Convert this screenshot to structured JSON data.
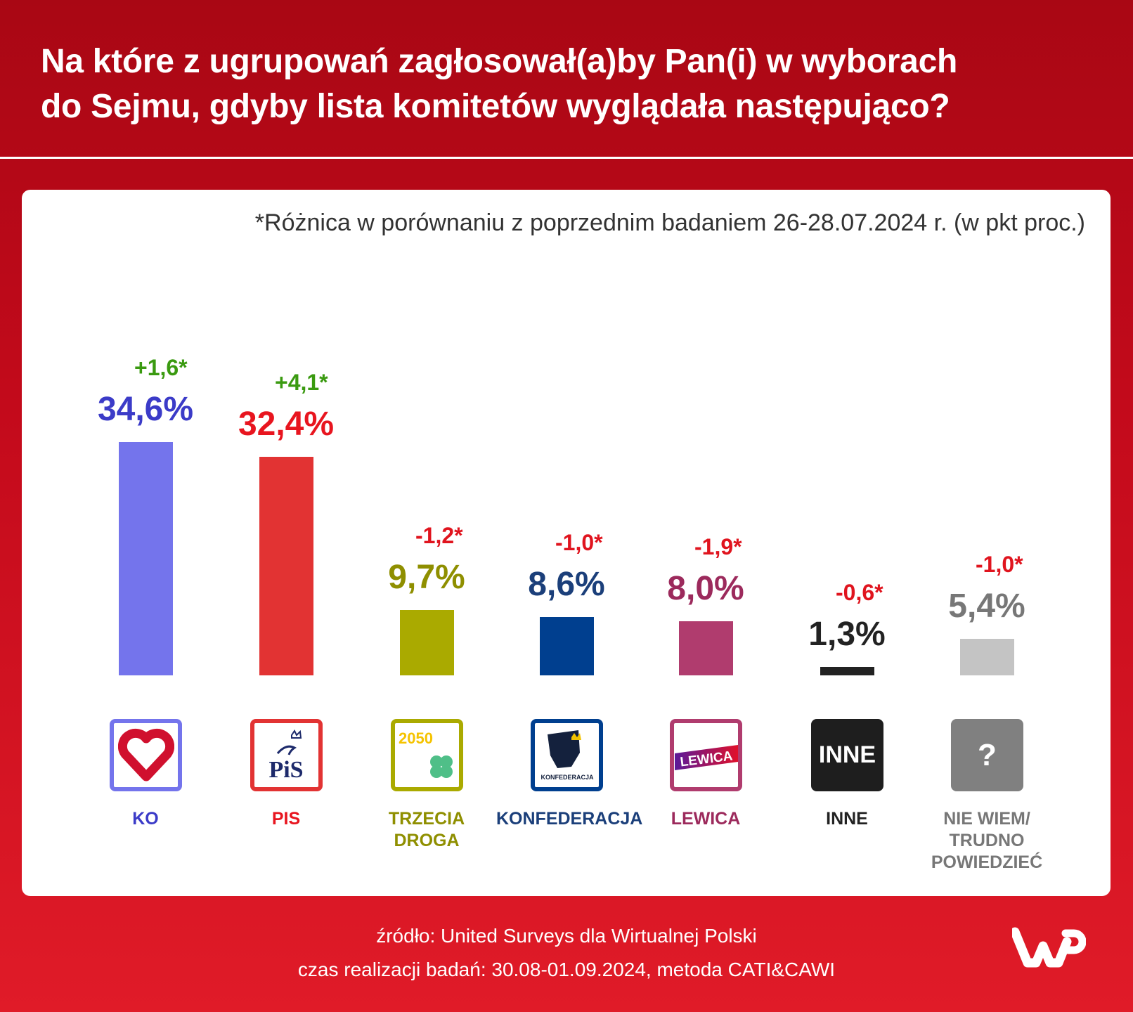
{
  "title_lines": [
    "Na które z ugrupowań zagłosował(a)by Pan(i) w wyborach",
    "do Sejmu, gdyby lista komitetów wyglądała następująco?"
  ],
  "chart_data": {
    "type": "bar",
    "note": "*Różnica w porównaniu z poprzednim badaniem 26-28.07.2024 r. (w pkt proc.)",
    "categories": [
      "KO",
      "PIS",
      "TRZECIA DROGA",
      "KONFEDERACJA",
      "LEWICA",
      "INNE",
      "NIE WIEM/ TRUDNO POWIEDZIEĆ"
    ],
    "label_lines": [
      [
        "KO"
      ],
      [
        "PIS"
      ],
      [
        "TRZECIA",
        "DROGA"
      ],
      [
        "KONFEDERACJA"
      ],
      [
        "LEWICA"
      ],
      [
        "INNE"
      ],
      [
        "NIE WIEM/",
        "TRUDNO",
        "POWIEDZIEĆ"
      ]
    ],
    "values": [
      34.6,
      32.4,
      9.7,
      8.6,
      8.0,
      1.3,
      5.4
    ],
    "value_labels": [
      "34,6%",
      "32,4%",
      "9,7%",
      "8,6%",
      "8,0%",
      "1,3%",
      "5,4%"
    ],
    "deltas": [
      "+1,6*",
      "+4,1*",
      "-1,2*",
      "-1,0*",
      "-1,9*",
      "-0,6*",
      "-1,0*"
    ],
    "bar_colors": [
      "#7474ec",
      "#e23333",
      "#aaaa00",
      "#003f8f",
      "#b03c6e",
      "#222222",
      "#c4c4c4"
    ],
    "label_colors": [
      "#3b3bc8",
      "#e8151f",
      "#8f8f00",
      "#1b3f7a",
      "#9c2a5c",
      "#222222",
      "#777777"
    ],
    "logo_borders": [
      "#7474ec",
      "#e23333",
      "#aaaa00",
      "#003f8f",
      "#b03c6e",
      "#1e1e1e",
      "#808080"
    ],
    "delta_colors": {
      "positive": "#3a9a10",
      "negative": "#e0141e"
    },
    "logo_texts": {
      "pis": "PiS",
      "trzecia": "2050",
      "konf": "KONFEDERACJA",
      "lewica": "LEWICA",
      "inne": "INNE",
      "niewiem": "?"
    }
  },
  "footer": {
    "source": "źródło: United Surveys dla Wirtualnej Polski",
    "period": "czas realizacji badań: 30.08-01.09.2024, metoda CATI&CAWI",
    "logo": "WP"
  }
}
